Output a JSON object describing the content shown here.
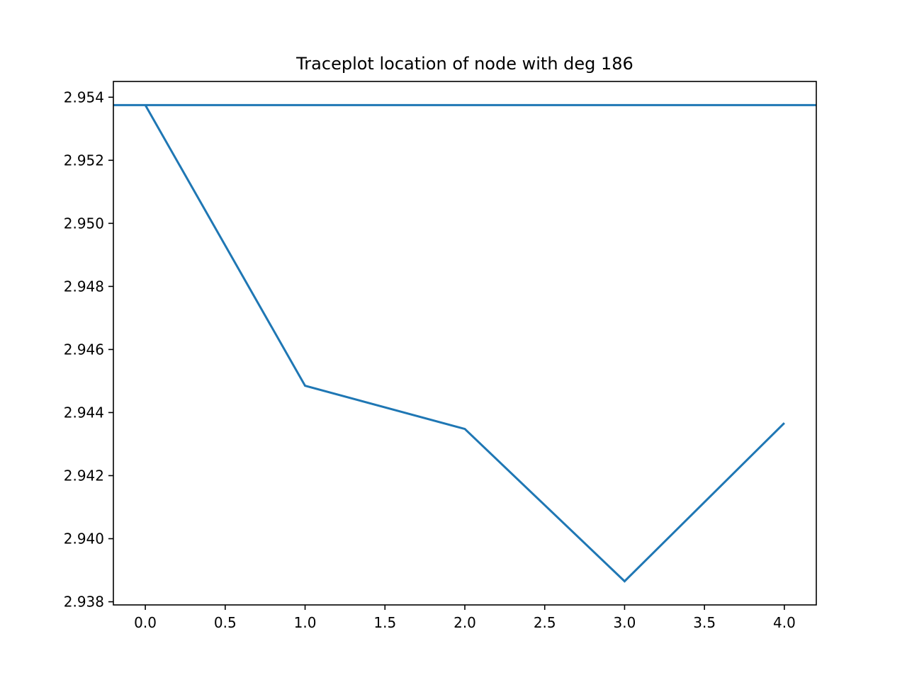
{
  "chart_data": {
    "type": "line",
    "title": "Traceplot location of node with deg 186",
    "xlabel": "",
    "ylabel": "",
    "xlim": [
      -0.2,
      4.2
    ],
    "ylim": [
      2.9379,
      2.9545
    ],
    "x_ticks": [
      "0.0",
      "0.5",
      "1.0",
      "1.5",
      "2.0",
      "2.5",
      "3.0",
      "3.5",
      "4.0"
    ],
    "y_ticks": [
      "2.938",
      "2.940",
      "2.942",
      "2.944",
      "2.946",
      "2.948",
      "2.950",
      "2.952",
      "2.954"
    ],
    "grid": false,
    "color": "#1f77b4",
    "series": [
      {
        "x": [
          0,
          1,
          2,
          3,
          4
        ],
        "values": [
          2.95375,
          2.94485,
          2.94348,
          2.93865,
          2.94367
        ]
      }
    ],
    "hlines": [
      {
        "y": 2.95375
      }
    ]
  }
}
